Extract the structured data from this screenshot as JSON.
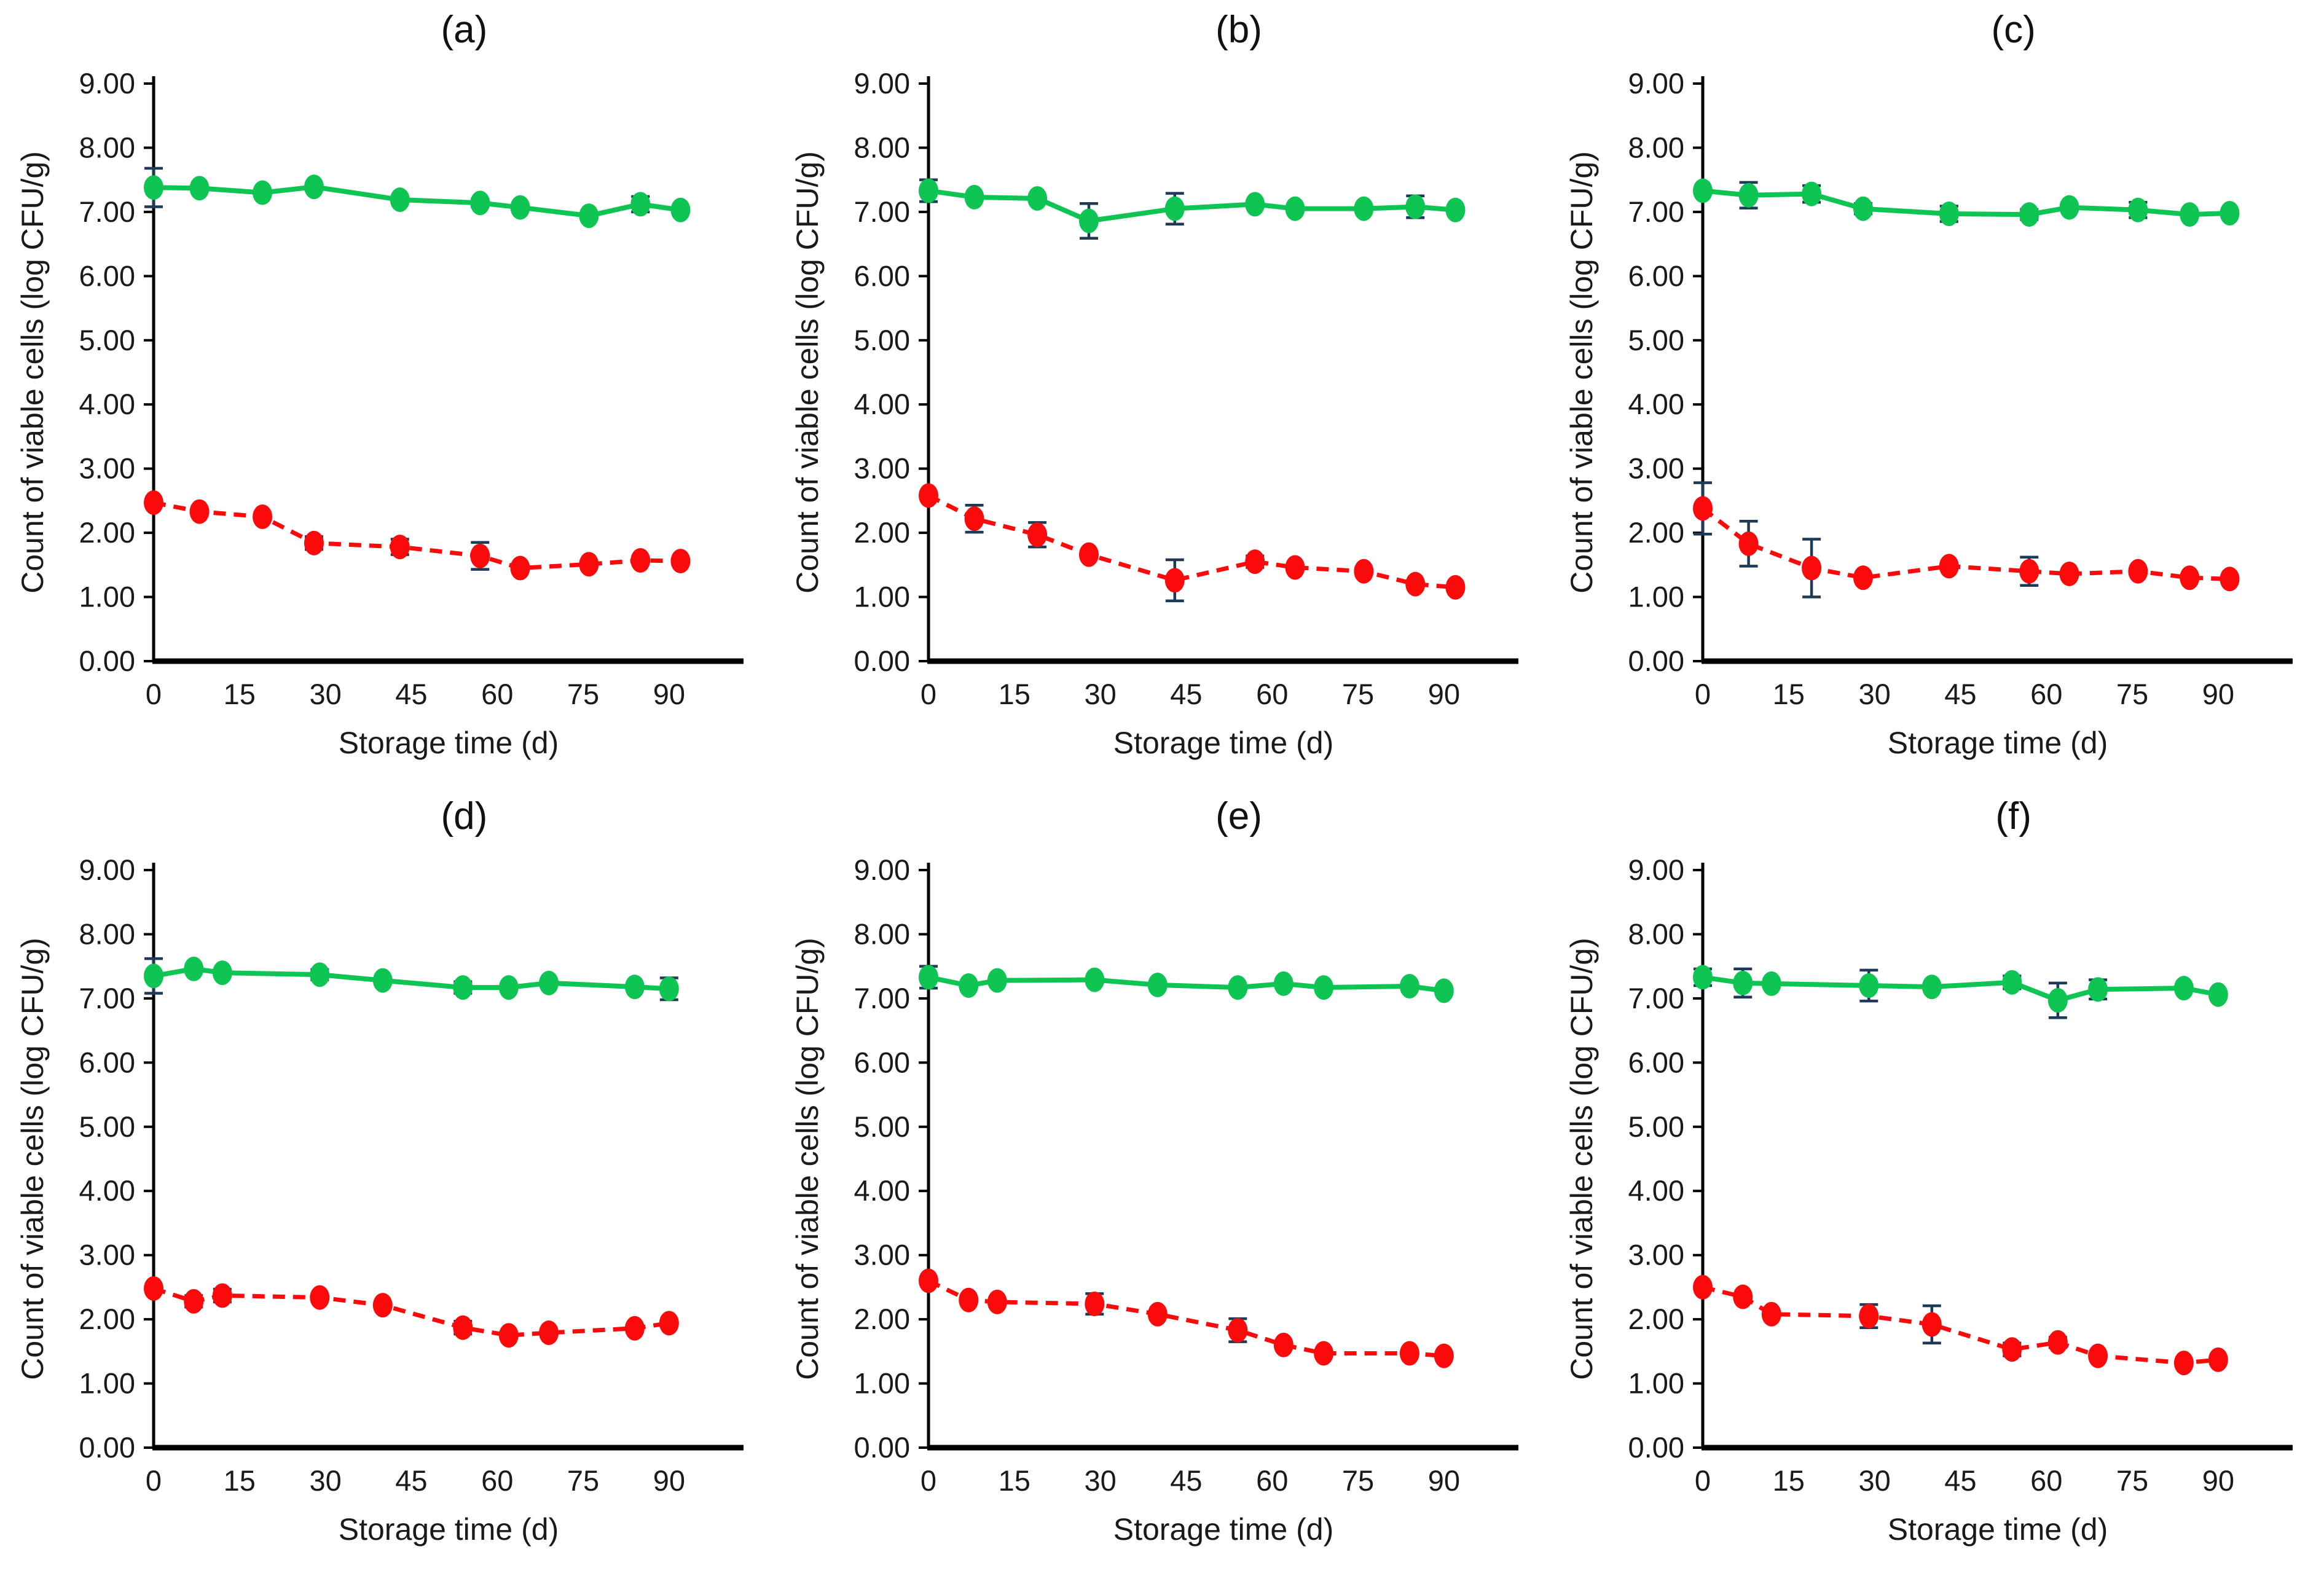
{
  "figure": {
    "description": "Six-panel line chart figure of microbial viable cell counts during storage",
    "background": "#ffffff"
  },
  "colors": {
    "green_series": "#0EC554",
    "red_series": "#FA0A0A",
    "error_bar": "#1F3A56",
    "axis_line": "#000000",
    "tick_text": "#1A1A1A",
    "background": "#FFFFFF"
  },
  "chart_data": {
    "type": "line",
    "layout": "2 rows x 3 columns of panels",
    "shared": {
      "xlabel": "Storage time (d)",
      "ylabel": "Count of viable cells (log CFU/g)",
      "xlim": [
        0,
        103
      ],
      "ylim": [
        0,
        9
      ],
      "xtick_values": [
        0,
        15,
        30,
        45,
        60,
        75,
        90
      ],
      "xtick_labels": [
        "0",
        "15",
        "30",
        "45",
        "60",
        "75",
        "90"
      ],
      "ytick_values": [
        0,
        1,
        2,
        3,
        4,
        5,
        6,
        7,
        8,
        9
      ],
      "ytick_labels": [
        "0.00",
        "1.00",
        "2.00",
        "3.00",
        "4.00",
        "5.00",
        "6.00",
        "7.00",
        "8.00",
        "9.00"
      ],
      "grid": "off",
      "legend": "none",
      "marker": "filled circle",
      "green_line_style": "solid",
      "red_line_style": "dashed",
      "error_bars": "vertical with caps, dark navy"
    },
    "panels": [
      {
        "title": "(a)",
        "x": [
          0,
          8,
          19,
          28,
          43,
          57,
          64,
          76,
          85,
          92
        ],
        "green": {
          "values": [
            7.38,
            7.37,
            7.3,
            7.39,
            7.19,
            7.14,
            7.07,
            6.94,
            7.12,
            7.03
          ],
          "errors": [
            0.3,
            0,
            0,
            0,
            0,
            0.06,
            0,
            0,
            0.12,
            0
          ]
        },
        "red": {
          "values": [
            2.47,
            2.33,
            2.25,
            1.84,
            1.78,
            1.64,
            1.45,
            1.51,
            1.57,
            1.56
          ],
          "errors": [
            0,
            0,
            0,
            0.1,
            0.12,
            0.21,
            0,
            0,
            0,
            0
          ]
        }
      },
      {
        "title": "(b)",
        "x": [
          0,
          8,
          19,
          28,
          43,
          57,
          64,
          76,
          85,
          92
        ],
        "green": {
          "values": [
            7.33,
            7.23,
            7.21,
            6.86,
            7.05,
            7.12,
            7.05,
            7.05,
            7.08,
            7.03
          ],
          "errors": [
            0.17,
            0,
            0,
            0.27,
            0.24,
            0,
            0,
            0,
            0.17,
            0
          ]
        },
        "red": {
          "values": [
            2.58,
            2.22,
            1.97,
            1.66,
            1.26,
            1.55,
            1.46,
            1.4,
            1.2,
            1.15
          ],
          "errors": [
            0,
            0.21,
            0.19,
            0,
            0.32,
            0.09,
            0,
            0,
            0,
            0
          ]
        }
      },
      {
        "title": "(c)",
        "x": [
          0,
          8,
          19,
          28,
          43,
          57,
          64,
          76,
          85,
          92
        ],
        "green": {
          "values": [
            7.33,
            7.26,
            7.28,
            7.05,
            6.97,
            6.96,
            7.07,
            7.03,
            6.96,
            6.98
          ],
          "errors": [
            0,
            0.2,
            0.13,
            0.08,
            0.12,
            0.08,
            0,
            0.12,
            0,
            0
          ]
        },
        "red": {
          "values": [
            2.38,
            1.83,
            1.45,
            1.3,
            1.48,
            1.4,
            1.36,
            1.4,
            1.3,
            1.28
          ],
          "errors": [
            0.4,
            0.35,
            0.45,
            0,
            0,
            0.22,
            0,
            0,
            0,
            0
          ]
        }
      },
      {
        "title": "(d)",
        "x": [
          0,
          7,
          12,
          29,
          40,
          54,
          62,
          69,
          84,
          90
        ],
        "green": {
          "values": [
            7.35,
            7.46,
            7.4,
            7.37,
            7.28,
            7.17,
            7.17,
            7.24,
            7.18,
            7.15
          ],
          "errors": [
            0.27,
            0,
            0,
            0.08,
            0,
            0.09,
            0,
            0,
            0,
            0.17
          ]
        },
        "red": {
          "values": [
            2.48,
            2.28,
            2.37,
            2.34,
            2.22,
            1.87,
            1.75,
            1.79,
            1.86,
            1.94
          ],
          "errors": [
            0,
            0.09,
            0.1,
            0,
            0,
            0.1,
            0,
            0,
            0,
            0
          ]
        }
      },
      {
        "title": "(e)",
        "x": [
          0,
          7,
          12,
          29,
          40,
          54,
          62,
          69,
          84,
          90
        ],
        "green": {
          "values": [
            7.33,
            7.2,
            7.28,
            7.29,
            7.21,
            7.17,
            7.23,
            7.17,
            7.19,
            7.12
          ],
          "errors": [
            0.17,
            0,
            0,
            0,
            0,
            0,
            0,
            0,
            0,
            0
          ]
        },
        "red": {
          "values": [
            2.6,
            2.3,
            2.27,
            2.24,
            2.08,
            1.83,
            1.6,
            1.47,
            1.47,
            1.43
          ],
          "errors": [
            0,
            0,
            0,
            0.16,
            0,
            0.18,
            0,
            0,
            0,
            0
          ]
        }
      },
      {
        "title": "(f)",
        "x": [
          0,
          7,
          12,
          29,
          40,
          54,
          62,
          69,
          84,
          90
        ],
        "green": {
          "values": [
            7.33,
            7.24,
            7.23,
            7.2,
            7.18,
            7.25,
            6.97,
            7.14,
            7.16,
            7.06
          ],
          "errors": [
            0.13,
            0.22,
            0,
            0.24,
            0,
            0.1,
            0.27,
            0.15,
            0,
            0
          ]
        },
        "red": {
          "values": [
            2.5,
            2.35,
            2.08,
            2.05,
            1.92,
            1.53,
            1.64,
            1.43,
            1.32,
            1.37
          ],
          "errors": [
            0,
            0,
            0,
            0.18,
            0.29,
            0.1,
            0.08,
            0,
            0,
            0
          ]
        }
      }
    ]
  }
}
